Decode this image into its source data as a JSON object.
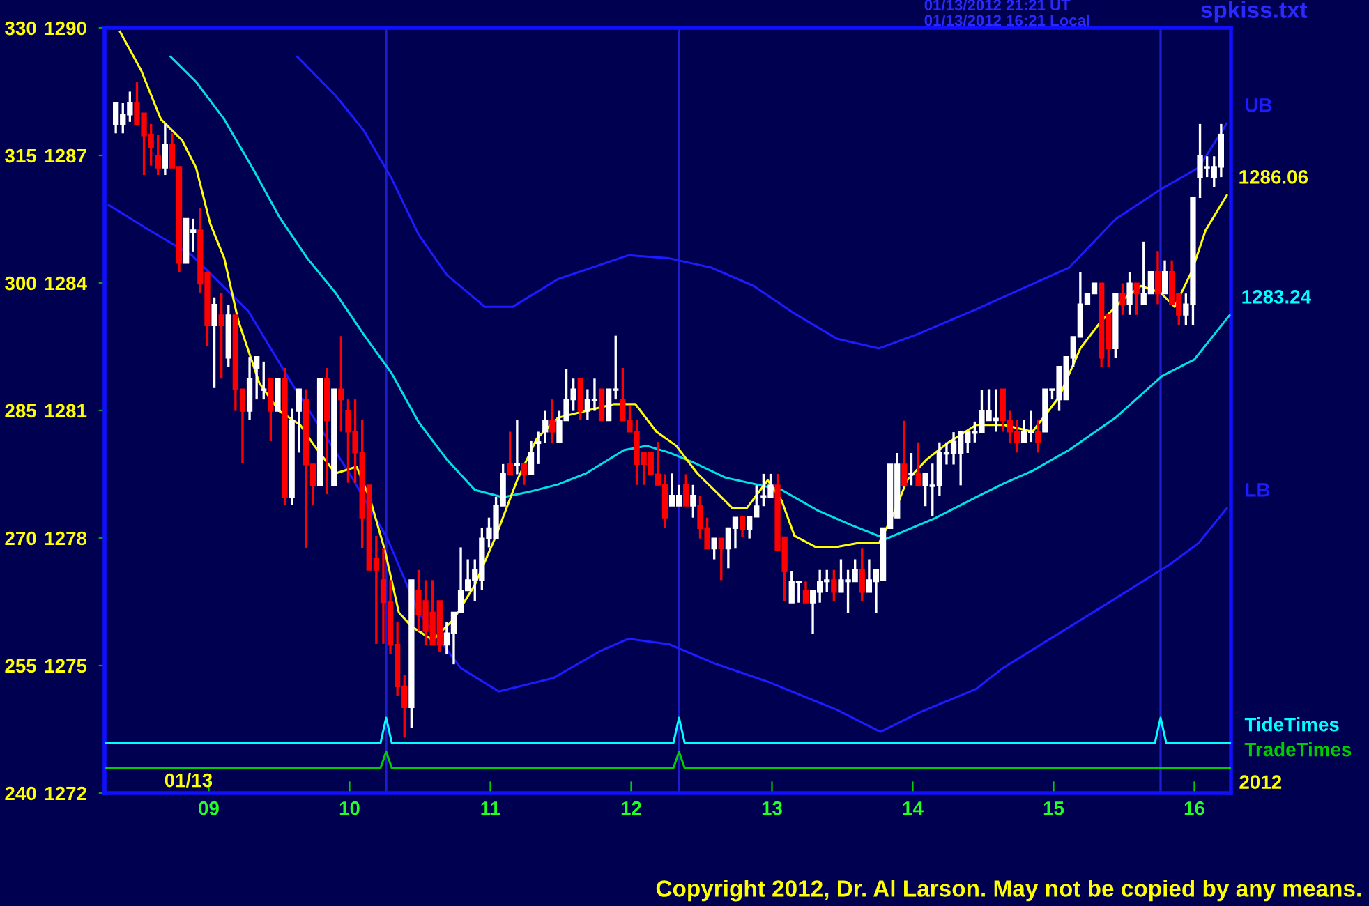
{
  "chart_data": {
    "type": "candlestick",
    "x": [
      8.34,
      8.39,
      8.44,
      8.49,
      8.54,
      8.59,
      8.64,
      8.69,
      8.74,
      8.79,
      8.84,
      8.89,
      8.94,
      8.99,
      9.04,
      9.09,
      9.14,
      9.19,
      9.24,
      9.29,
      9.34,
      9.39,
      9.44,
      9.49,
      9.54,
      9.59,
      9.64,
      9.69,
      9.74,
      9.79,
      9.84,
      9.89,
      9.94,
      9.99,
      10.04,
      10.09,
      10.14,
      10.19,
      10.24,
      10.29,
      10.34,
      10.39,
      10.44,
      10.49,
      10.54,
      10.59,
      10.64,
      10.69,
      10.74,
      10.79,
      10.84,
      10.89,
      10.94,
      10.99,
      11.04,
      11.09,
      11.14,
      11.19,
      11.24,
      11.29,
      11.34,
      11.39,
      11.44,
      11.49,
      11.54,
      11.59,
      11.64,
      11.69,
      11.74,
      11.79,
      11.84,
      11.89,
      11.94,
      11.99,
      12.04,
      12.09,
      12.14,
      12.19,
      12.24,
      12.29,
      12.34,
      12.39,
      12.44,
      12.49,
      12.54,
      12.59,
      12.64,
      12.69,
      12.74,
      12.79,
      12.84,
      12.89,
      12.94,
      12.99,
      13.04,
      13.09,
      13.14,
      13.19,
      13.24,
      13.29,
      13.34,
      13.39,
      13.44,
      13.49,
      13.54,
      13.59,
      13.64,
      13.69,
      13.74,
      13.79,
      13.84,
      13.89,
      13.94,
      13.99,
      14.04,
      14.09,
      14.14,
      14.19,
      14.24,
      14.29,
      14.34,
      14.39,
      14.44,
      14.49,
      14.54,
      14.59,
      14.64,
      14.69,
      14.74,
      14.79,
      14.84,
      14.89,
      14.94,
      14.99,
      15.04,
      15.09,
      15.14,
      15.19,
      15.24,
      15.29,
      15.34,
      15.39,
      15.44,
      15.49,
      15.54,
      15.59,
      15.64,
      15.69,
      15.74,
      15.79,
      15.84,
      15.89,
      15.94,
      15.99,
      16.04,
      16.09,
      16.14,
      16.19
    ],
    "ohlc": [
      [
        1287.74,
        1288.23,
        1287.52,
        1288.23
      ],
      [
        1287.74,
        1288.23,
        1287.52,
        1287.96
      ],
      [
        1287.96,
        1288.5,
        1287.79,
        1288.23
      ],
      [
        1288.23,
        1288.72,
        1287.74,
        1287.74
      ],
      [
        1287.99,
        1287.99,
        1286.54,
        1287.47
      ],
      [
        1287.49,
        1287.74,
        1286.76,
        1287.2
      ],
      [
        1287.0,
        1287.49,
        1286.54,
        1286.71
      ],
      [
        1286.71,
        1287.74,
        1286.54,
        1287.25
      ],
      [
        1287.25,
        1287.52,
        1286.71,
        1286.71
      ],
      [
        1286.73,
        1286.73,
        1284.25,
        1284.47
      ],
      [
        1284.47,
        1285.51,
        1284.47,
        1285.51
      ],
      [
        1285.2,
        1285.51,
        1284.74,
        1285.24
      ],
      [
        1285.24,
        1285.76,
        1283.76,
        1283.98
      ],
      [
        1284.25,
        1284.25,
        1282.51,
        1283.0
      ],
      [
        1283.0,
        1283.66,
        1281.53,
        1283.49
      ],
      [
        1283.24,
        1283.76,
        1281.75,
        1283.0
      ],
      [
        1282.24,
        1283.49,
        1282.02,
        1283.24
      ],
      [
        1283.24,
        1283.24,
        1280.99,
        1281.5
      ],
      [
        1281.5,
        1281.5,
        1279.76,
        1280.99
      ],
      [
        1280.99,
        1282.26,
        1280.77,
        1281.75
      ],
      [
        1282.0,
        1282.26,
        1281.26,
        1282.26
      ],
      [
        1281.48,
        1282.15,
        1281.26,
        1281.5
      ],
      [
        1281.75,
        1281.75,
        1280.28,
        1280.99
      ],
      [
        1280.99,
        1281.75,
        1280.99,
        1281.75
      ],
      [
        1281.75,
        1282.0,
        1278.78,
        1278.97
      ],
      [
        1278.97,
        1281.04,
        1278.78,
        1280.77
      ],
      [
        1280.99,
        1281.5,
        1280.01,
        1281.5
      ],
      [
        1281.26,
        1281.5,
        1277.77,
        1279.73
      ],
      [
        1279.73,
        1279.73,
        1278.78,
        1279.24
      ],
      [
        1279.24,
        1281.75,
        1279.24,
        1281.75
      ],
      [
        1281.75,
        1282.0,
        1279.03,
        1280.77
      ],
      [
        1279.24,
        1281.5,
        1279.24,
        1281.5
      ],
      [
        1281.5,
        1282.75,
        1280.5,
        1281.26
      ],
      [
        1280.99,
        1281.26,
        1279.3,
        1280.5
      ],
      [
        1280.5,
        1281.26,
        1279.3,
        1280.01
      ],
      [
        1280.01,
        1280.77,
        1277.77,
        1278.48
      ],
      [
        1279.24,
        1279.24,
        1277.25,
        1277.25
      ],
      [
        1277.52,
        1278.05,
        1275.51,
        1277.25
      ],
      [
        1277.01,
        1277.77,
        1275.51,
        1276.49
      ],
      [
        1276.49,
        1277.01,
        1275.27,
        1275.49
      ],
      [
        1275.49,
        1276.03,
        1274.29,
        1274.51
      ],
      [
        1274.51,
        1274.78,
        1273.31,
        1274.02
      ],
      [
        1274.02,
        1277.01,
        1273.53,
        1277.01
      ],
      [
        1276.77,
        1277.25,
        1275.81,
        1276.2
      ],
      [
        1276.52,
        1277.01,
        1275.49,
        1275.81
      ],
      [
        1276.25,
        1277.01,
        1275.49,
        1275.49
      ],
      [
        1276.52,
        1276.52,
        1275.32,
        1275.49
      ],
      [
        1275.49,
        1276.03,
        1275.27,
        1275.76
      ],
      [
        1275.76,
        1276.25,
        1275.03,
        1276.25
      ],
      [
        1276.25,
        1277.78,
        1276.25,
        1276.77
      ],
      [
        1276.77,
        1277.5,
        1276.77,
        1277.01
      ],
      [
        1277.01,
        1277.5,
        1276.52,
        1277.25
      ],
      [
        1277.01,
        1278.23,
        1276.77,
        1277.99
      ],
      [
        1277.99,
        1278.48,
        1277.78,
        1278.23
      ],
      [
        1277.99,
        1278.97,
        1277.99,
        1278.76
      ],
      [
        1278.76,
        1279.74,
        1278.76,
        1279.52
      ],
      [
        1279.74,
        1280.5,
        1279.5,
        1279.5
      ],
      [
        1279.71,
        1280.77,
        1279.5,
        1279.74
      ],
      [
        1279.74,
        1279.74,
        1279.25,
        1279.5
      ],
      [
        1279.5,
        1280.28,
        1279.5,
        1280.01
      ],
      [
        1280.23,
        1280.5,
        1279.74,
        1280.26
      ],
      [
        1280.5,
        1280.99,
        1280.23,
        1280.77
      ],
      [
        1280.77,
        1281.26,
        1280.23,
        1280.5
      ],
      [
        1280.26,
        1280.99,
        1280.26,
        1280.77
      ],
      [
        1280.77,
        1281.97,
        1280.77,
        1281.26
      ],
      [
        1281.26,
        1281.75,
        1280.99,
        1281.5
      ],
      [
        1281.75,
        1281.75,
        1280.77,
        1280.99
      ],
      [
        1280.99,
        1281.5,
        1280.77,
        1281.26
      ],
      [
        1281.24,
        1281.75,
        1280.99,
        1281.26
      ],
      [
        1281.5,
        1281.5,
        1280.77,
        1280.77
      ],
      [
        1280.77,
        1281.5,
        1280.77,
        1281.5
      ],
      [
        1281.48,
        1282.76,
        1281.26,
        1281.5
      ],
      [
        1281.26,
        1282.0,
        1280.77,
        1280.77
      ],
      [
        1280.77,
        1281.1,
        1280.5,
        1280.5
      ],
      [
        1280.5,
        1280.77,
        1279.25,
        1279.74
      ],
      [
        1280.01,
        1280.01,
        1279.25,
        1279.74
      ],
      [
        1280.01,
        1280.01,
        1279.5,
        1279.5
      ],
      [
        1279.5,
        1280.26,
        1279.25,
        1279.25
      ],
      [
        1279.25,
        1279.5,
        1278.23,
        1278.48
      ],
      [
        1278.76,
        1279.52,
        1278.76,
        1279.0
      ],
      [
        1278.76,
        1279.25,
        1278.76,
        1279.0
      ],
      [
        1279.25,
        1279.5,
        1278.76,
        1278.76
      ],
      [
        1278.76,
        1279.25,
        1278.48,
        1279.0
      ],
      [
        1278.76,
        1279.0,
        1277.99,
        1278.23
      ],
      [
        1278.23,
        1278.48,
        1277.75,
        1277.75
      ],
      [
        1277.75,
        1277.99,
        1277.5,
        1277.99
      ],
      [
        1277.99,
        1277.99,
        1277.01,
        1277.75
      ],
      [
        1277.75,
        1278.23,
        1277.29,
        1278.23
      ],
      [
        1278.23,
        1278.48,
        1277.75,
        1278.48
      ],
      [
        1278.5,
        1278.5,
        1278.02,
        1278.2
      ],
      [
        1278.2,
        1278.5,
        1277.99,
        1278.5
      ],
      [
        1278.5,
        1279.24,
        1278.5,
        1278.75
      ],
      [
        1278.97,
        1279.51,
        1278.75,
        1278.99
      ],
      [
        1278.97,
        1279.51,
        1278.97,
        1279.24
      ],
      [
        1279.24,
        1279.51,
        1277.71,
        1277.71
      ],
      [
        1278.02,
        1278.02,
        1276.52,
        1277.22
      ],
      [
        1276.48,
        1277.22,
        1276.48,
        1276.98
      ],
      [
        1276.96,
        1276.98,
        1276.48,
        1276.98
      ],
      [
        1276.77,
        1276.98,
        1276.48,
        1276.48
      ],
      [
        1276.48,
        1276.77,
        1275.75,
        1276.77
      ],
      [
        1276.73,
        1277.25,
        1276.48,
        1276.98
      ],
      [
        1276.98,
        1277.25,
        1276.73,
        1277.01
      ],
      [
        1277.01,
        1277.25,
        1276.52,
        1276.73
      ],
      [
        1276.73,
        1277.5,
        1276.73,
        1277.01
      ],
      [
        1276.98,
        1277.25,
        1276.24,
        1277.01
      ],
      [
        1276.98,
        1277.5,
        1276.98,
        1277.25
      ],
      [
        1277.25,
        1277.75,
        1276.52,
        1276.73
      ],
      [
        1276.73,
        1277.5,
        1276.73,
        1277.01
      ],
      [
        1276.98,
        1277.25,
        1276.24,
        1277.25
      ],
      [
        1277.01,
        1278.23,
        1277.01,
        1278.23
      ],
      [
        1278.23,
        1279.73,
        1278.23,
        1279.73
      ],
      [
        1278.48,
        1280.0,
        1278.48,
        1279.73
      ],
      [
        1279.73,
        1280.76,
        1279.24,
        1279.24
      ],
      [
        1279.49,
        1280.0,
        1279.24,
        1279.51
      ],
      [
        1279.51,
        1280.25,
        1279.24,
        1279.24
      ],
      [
        1279.24,
        1279.51,
        1278.75,
        1279.51
      ],
      [
        1279.22,
        1279.75,
        1278.51,
        1279.24
      ],
      [
        1279.24,
        1280.25,
        1278.99,
        1280.0
      ],
      [
        1279.98,
        1280.25,
        1279.73,
        1280.0
      ],
      [
        1280.0,
        1280.49,
        1279.73,
        1280.27
      ],
      [
        1280.0,
        1280.49,
        1279.24,
        1280.49
      ],
      [
        1280.25,
        1280.49,
        1280.0,
        1280.49
      ],
      [
        1280.47,
        1280.74,
        1280.25,
        1280.49
      ],
      [
        1280.49,
        1281.49,
        1280.49,
        1280.98
      ],
      [
        1280.77,
        1281.5,
        1280.77,
        1280.99
      ],
      [
        1280.77,
        1281.5,
        1280.5,
        1280.81
      ],
      [
        1281.5,
        1281.5,
        1280.5,
        1280.77
      ],
      [
        1280.77,
        1280.99,
        1280.23,
        1280.5
      ],
      [
        1280.5,
        1280.77,
        1280.01,
        1280.26
      ],
      [
        1280.26,
        1280.77,
        1280.26,
        1280.5
      ],
      [
        1280.48,
        1280.99,
        1280.26,
        1280.5
      ],
      [
        1280.5,
        1280.77,
        1280.01,
        1280.26
      ],
      [
        1280.5,
        1281.5,
        1280.5,
        1281.5
      ],
      [
        1281.48,
        1281.5,
        1281.26,
        1281.5
      ],
      [
        1281.26,
        1282.03,
        1280.99,
        1282.03
      ],
      [
        1281.26,
        1282.26,
        1281.26,
        1282.26
      ],
      [
        1282.24,
        1282.73,
        1282.03,
        1282.73
      ],
      [
        1282.73,
        1284.26,
        1282.73,
        1283.5
      ],
      [
        1283.5,
        1283.75,
        1283.5,
        1283.75
      ],
      [
        1283.75,
        1283.99,
        1283.75,
        1283.99
      ],
      [
        1283.99,
        1283.99,
        1282.03,
        1282.24
      ],
      [
        1283.25,
        1283.25,
        1282.03,
        1282.46
      ],
      [
        1282.46,
        1283.75,
        1282.24,
        1283.75
      ],
      [
        1283.75,
        1283.99,
        1283.25,
        1283.5
      ],
      [
        1283.5,
        1284.26,
        1283.25,
        1283.99
      ],
      [
        1283.99,
        1283.99,
        1283.25,
        1283.75
      ],
      [
        1283.5,
        1284.97,
        1283.5,
        1283.75
      ],
      [
        1283.75,
        1284.26,
        1283.75,
        1284.26
      ],
      [
        1284.26,
        1284.75,
        1283.5,
        1283.75
      ],
      [
        1283.75,
        1284.53,
        1283.75,
        1284.26
      ],
      [
        1284.26,
        1284.53,
        1283.5,
        1283.5
      ],
      [
        1283.75,
        1283.75,
        1283.01,
        1283.25
      ],
      [
        1283.25,
        1283.75,
        1283.01,
        1283.5
      ],
      [
        1283.5,
        1286.0,
        1283.01,
        1286.0
      ],
      [
        1286.49,
        1287.74,
        1286.0,
        1286.98
      ],
      [
        1286.71,
        1286.98,
        1286.49,
        1286.73
      ],
      [
        1286.49,
        1286.98,
        1286.25,
        1286.73
      ],
      [
        1286.73,
        1287.74,
        1286.49,
        1287.49
      ]
    ],
    "colors": [
      "#ffffff",
      "#ffffff",
      "#ffffff",
      "#ff0000",
      "#ff0000",
      "#ff0000",
      "#ff0000",
      "#ffffff",
      "#ff0000",
      "#ff0000",
      "#ffffff",
      "#ffffff",
      "#ff0000",
      "#ff0000",
      "#ffffff",
      "#ff0000",
      "#ffffff",
      "#ff0000",
      "#ff0000",
      "#ffffff",
      "#ffffff",
      "#ffffff",
      "#ff0000",
      "#ffffff",
      "#ff0000",
      "#ffffff",
      "#ffffff",
      "#ff0000",
      "#ff0000",
      "#ffffff",
      "#ff0000",
      "#ffffff",
      "#ff0000",
      "#ff0000",
      "#ff0000",
      "#ff0000",
      "#ff0000",
      "#ff0000",
      "#ff0000",
      "#ff0000",
      "#ff0000",
      "#ff0000",
      "#ffffff",
      "#ff0000",
      "#ff0000",
      "#ff0000",
      "#ff0000",
      "#ffffff",
      "#ffffff",
      "#ffffff",
      "#ffffff",
      "#ffffff",
      "#ffffff",
      "#ffffff",
      "#ffffff",
      "#ffffff",
      "#ff0000",
      "#ffffff",
      "#ff0000",
      "#ffffff",
      "#ffffff",
      "#ffffff",
      "#ff0000",
      "#ffffff",
      "#ffffff",
      "#ffffff",
      "#ff0000",
      "#ffffff",
      "#ffffff",
      "#ff0000",
      "#ffffff",
      "#ffffff",
      "#ff0000",
      "#ff0000",
      "#ff0000",
      "#ff0000",
      "#ff0000",
      "#ff0000",
      "#ff0000",
      "#ffffff",
      "#ffffff",
      "#ff0000",
      "#ffffff",
      "#ff0000",
      "#ff0000",
      "#ffffff",
      "#ff0000",
      "#ffffff",
      "#ffffff",
      "#ff0000",
      "#ffffff",
      "#ffffff",
      "#ffffff",
      "#ffffff",
      "#ff0000",
      "#ff0000",
      "#ffffff",
      "#ffffff",
      "#ff0000",
      "#ffffff",
      "#ffffff",
      "#ffffff",
      "#ff0000",
      "#ffffff",
      "#ffffff",
      "#ffffff",
      "#ff0000",
      "#ffffff",
      "#ffffff",
      "#ffffff",
      "#ffffff",
      "#ffffff",
      "#ff0000",
      "#ffffff",
      "#ff0000",
      "#ffffff",
      "#ffffff",
      "#ffffff",
      "#ffffff",
      "#ffffff",
      "#ffffff",
      "#ffffff",
      "#ffffff",
      "#ffffff",
      "#ffffff",
      "#ffffff",
      "#ff0000",
      "#ff0000",
      "#ff0000",
      "#ffffff",
      "#ffffff",
      "#ff0000",
      "#ffffff",
      "#ffffff",
      "#ffffff",
      "#ffffff",
      "#ffffff",
      "#ffffff",
      "#ffffff",
      "#ffffff",
      "#ff0000",
      "#ff0000",
      "#ffffff",
      "#ff0000",
      "#ffffff",
      "#ff0000",
      "#ffffff",
      "#ffffff",
      "#ff0000",
      "#ffffff",
      "#ff0000",
      "#ff0000",
      "#ffffff",
      "#ffffff",
      "#ffffff",
      "#ffffff",
      "#ffffff",
      "#ffffff"
    ],
    "series": [
      {
        "type": "line",
        "name": "UB",
        "color": "#1c1cff",
        "x": [
          9.63,
          9.9,
          10.1,
          10.3,
          10.49,
          10.69,
          10.96,
          11.16,
          11.48,
          11.98,
          12.27,
          12.57,
          12.87,
          13.16,
          13.46,
          13.76,
          14.03,
          14.45,
          14.78,
          15.11,
          15.44,
          15.77,
          16.03,
          16.23
        ],
        "values": [
          1289.32,
          1288.41,
          1287.59,
          1286.45,
          1285.14,
          1284.19,
          1283.44,
          1283.44,
          1284.09,
          1284.65,
          1284.58,
          1284.36,
          1283.93,
          1283.28,
          1282.69,
          1282.46,
          1282.79,
          1283.38,
          1283.87,
          1284.36,
          1285.5,
          1286.22,
          1286.71,
          1287.75
        ]
      },
      {
        "type": "line",
        "name": "LB",
        "color": "#1c1cff",
        "x": [
          8.29,
          8.55,
          8.88,
          9.28,
          9.6,
          10.0,
          10.27,
          10.49,
          10.79,
          11.06,
          11.45,
          11.78,
          11.98,
          12.27,
          12.6,
          12.97,
          13.46,
          13.77,
          14.05,
          14.45,
          14.64,
          15.04,
          15.44,
          15.83,
          16.03,
          16.23
        ],
        "values": [
          1285.83,
          1285.3,
          1284.65,
          1283.34,
          1281.58,
          1279.52,
          1277.98,
          1276.25,
          1274.94,
          1274.39,
          1274.71,
          1275.34,
          1275.63,
          1275.5,
          1275.04,
          1274.62,
          1273.96,
          1273.44,
          1273.9,
          1274.45,
          1274.94,
          1275.76,
          1276.58,
          1277.39,
          1277.88,
          1278.7
        ]
      },
      {
        "type": "line",
        "color": "#00e0e0",
        "x": [
          8.73,
          8.91,
          9.11,
          9.31,
          9.5,
          9.7,
          9.9,
          10.1,
          10.3,
          10.49,
          10.69,
          10.89,
          11.09,
          11.28,
          11.48,
          11.68,
          11.95,
          12.11,
          12.27,
          12.44,
          12.67,
          13.07,
          13.33,
          13.56,
          13.81,
          14.16,
          14.45,
          14.65,
          14.85,
          15.11,
          15.44,
          15.77,
          16.0,
          16.25
        ],
        "values": [
          1289.32,
          1288.73,
          1287.85,
          1286.71,
          1285.56,
          1284.58,
          1283.77,
          1282.79,
          1281.87,
          1280.73,
          1279.85,
          1279.13,
          1278.96,
          1279.09,
          1279.26,
          1279.52,
          1280.07,
          1280.17,
          1280.01,
          1279.78,
          1279.42,
          1279.13,
          1278.64,
          1278.31,
          1277.98,
          1278.47,
          1278.96,
          1279.29,
          1279.58,
          1280.07,
          1280.83,
          1281.81,
          1282.2,
          1283.24
        ]
      },
      {
        "type": "line",
        "color": "#ffff00",
        "x": [
          8.37,
          8.52,
          8.66,
          8.81,
          8.91,
          9.01,
          9.11,
          9.21,
          9.36,
          9.5,
          9.65,
          9.75,
          9.9,
          10.05,
          10.15,
          10.25,
          10.35,
          10.44,
          10.59,
          10.74,
          10.89,
          11.04,
          11.19,
          11.33,
          11.48,
          11.68,
          11.88,
          12.03,
          12.18,
          12.32,
          12.47,
          12.62,
          12.72,
          12.82,
          12.97,
          13.07,
          13.16,
          13.31,
          13.46,
          13.61,
          13.76,
          13.86,
          13.96,
          14.1,
          14.25,
          14.45,
          14.65,
          14.85,
          15.04,
          15.19,
          15.34,
          15.49,
          15.62,
          15.76,
          15.86,
          15.98,
          16.08,
          16.23
        ],
        "values": [
          1289.91,
          1289.0,
          1287.85,
          1287.36,
          1286.71,
          1285.4,
          1284.58,
          1283.11,
          1281.64,
          1280.99,
          1280.66,
          1280.17,
          1279.52,
          1279.68,
          1278.87,
          1277.72,
          1276.25,
          1275.92,
          1275.6,
          1276.09,
          1276.9,
          1278.05,
          1279.36,
          1280.34,
          1280.83,
          1280.99,
          1281.15,
          1281.15,
          1280.5,
          1280.17,
          1279.52,
          1279.03,
          1278.7,
          1278.7,
          1279.36,
          1278.87,
          1278.05,
          1277.79,
          1277.79,
          1277.88,
          1277.88,
          1278.54,
          1279.36,
          1279.85,
          1280.24,
          1280.66,
          1280.66,
          1280.5,
          1281.32,
          1282.46,
          1283.11,
          1283.6,
          1283.93,
          1283.77,
          1283.44,
          1284.26,
          1285.24,
          1286.06
        ]
      },
      {
        "type": "line",
        "name": "TideTimes",
        "color": "#00ffff",
        "x": [
          8.26,
          10.22,
          10.26,
          10.3,
          12.3,
          12.34,
          12.38,
          15.72,
          15.76,
          15.8,
          16.26
        ],
        "values": [
          1273.18,
          1273.18,
          1273.77,
          1273.18,
          1273.18,
          1273.77,
          1273.18,
          1273.18,
          1273.77,
          1273.18,
          1273.18
        ]
      },
      {
        "type": "line",
        "name": "TradeTimes",
        "color": "#00cc00",
        "x": [
          8.26,
          10.22,
          10.26,
          10.3,
          12.3,
          12.34,
          12.38,
          16.26
        ],
        "values": [
          1272.59,
          1272.59,
          1272.97,
          1272.59,
          1272.59,
          1272.97,
          1272.59,
          1272.59
        ]
      }
    ],
    "ref_lines": [
      {
        "axis": "x",
        "value": 10.26,
        "color": "#1c1cd0"
      },
      {
        "axis": "x",
        "value": 12.34,
        "color": "#1c1cd0"
      },
      {
        "axis": "x",
        "value": 15.76,
        "color": "#1c1cd0"
      }
    ],
    "xlim": [
      8.26,
      16.26
    ],
    "xticks": [
      {
        "value": 9,
        "label": "09"
      },
      {
        "value": 10,
        "label": "10"
      },
      {
        "value": 11,
        "label": "11"
      },
      {
        "value": 12,
        "label": "12"
      },
      {
        "value": 13,
        "label": "13"
      },
      {
        "value": 14,
        "label": "14"
      },
      {
        "value": 15,
        "label": "15"
      },
      {
        "value": 16,
        "label": "16"
      }
    ],
    "ylim": [
      1272,
      1290
    ],
    "yticks": [
      1272,
      1275,
      1278,
      1281,
      1284,
      1287,
      1290
    ],
    "y2lim": [
      240,
      330
    ],
    "y2ticks": [
      240,
      255,
      270,
      285,
      300,
      315,
      330
    ],
    "annotations": [
      "01/13/2012 21:21 UT",
      "01/13/2012 16:21 Local",
      "spkiss.txt",
      "01/13",
      "2012",
      "Copyright 2012, Dr. Al Larson. May not be copied by any means.",
      {
        "text": "1286.06",
        "x": 16.23,
        "y": 1286.06
      },
      {
        "text": "1283.24",
        "x": 16.25,
        "y": 1283.24
      }
    ],
    "grid": false,
    "legend": false
  }
}
